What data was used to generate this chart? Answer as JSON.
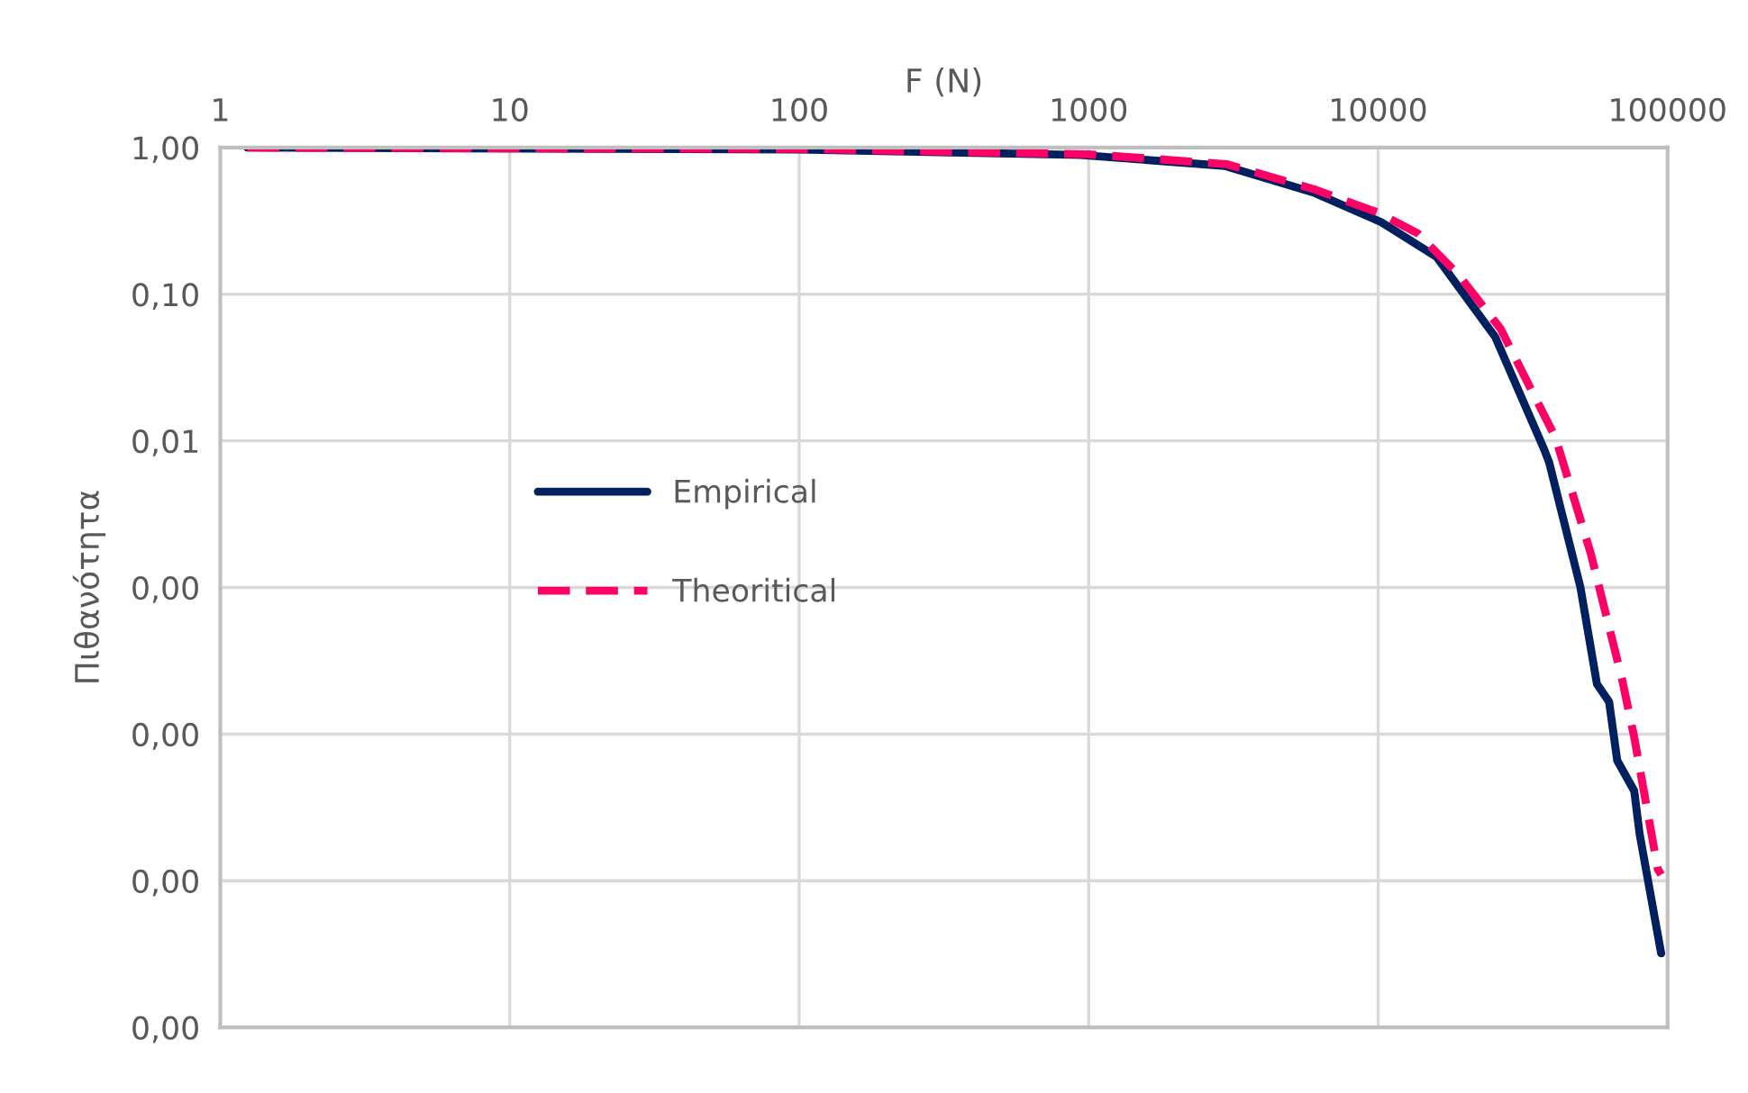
{
  "chart_data": {
    "type": "line",
    "xlabel": "F (N)",
    "ylabel": "Πιθανότητα",
    "log": "xy",
    "grid": true,
    "legend": "left",
    "marker": "none",
    "xlim": [
      1,
      100000
    ],
    "xticks": [
      1,
      10,
      100,
      1000,
      10000,
      100000
    ],
    "ylim": [
      1e-06,
      1
    ],
    "yticks": [
      {
        "value": 1,
        "label": "1,00"
      },
      {
        "value": 0.1,
        "label": "0,10"
      },
      {
        "value": 0.01,
        "label": "0,01"
      },
      {
        "value": 0.001,
        "label": "0,00"
      },
      {
        "value": 0.0001,
        "label": "0,00"
      },
      {
        "value": 1e-05,
        "label": "0,00"
      },
      {
        "value": 1e-06,
        "label": "0,00"
      }
    ],
    "series": [
      {
        "name": "Empirical",
        "color": "#002060",
        "line_style": "solid",
        "x": [
          1.24,
          100,
          935,
          2950,
          6040,
          10250,
          15900,
          25400,
          37500,
          39000,
          50000,
          57000,
          62800,
          67000,
          76700,
          80000,
          95000
        ],
        "values": [
          1,
          0.97,
          0.89,
          0.75,
          0.49,
          0.31,
          0.18,
          0.051,
          0.0087,
          0.0071,
          0.001,
          0.00022,
          0.000166,
          6.6e-05,
          4.1e-05,
          2.1e-05,
          3.2e-06
        ]
      },
      {
        "name": "Theoritical",
        "color": "#ff0066",
        "line_style": "dashed",
        "x": [
          1.24,
          100,
          1000,
          3000,
          6000,
          10000,
          13700,
          19000,
          26500,
          41000,
          54300,
          69500,
          76700,
          92500,
          95000
        ],
        "values": [
          1,
          0.98,
          0.9,
          0.77,
          0.52,
          0.36,
          0.26,
          0.135,
          0.058,
          0.0105,
          0.0017,
          0.00024,
          9.5e-05,
          1.2e-05,
          1.1e-05
        ]
      }
    ]
  }
}
